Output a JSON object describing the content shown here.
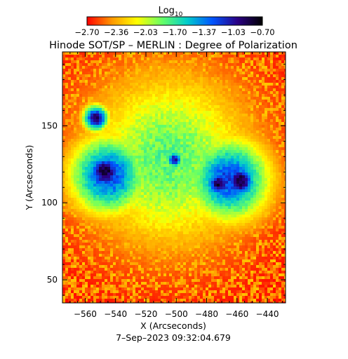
{
  "chart_data": {
    "type": "heatmap",
    "title": "Hinode SOT/SP – MERLIN : Degree of Polarization",
    "xlabel": "X (Arcseconds)",
    "ylabel": "Y (Arcseconds)",
    "xlim": [
      -575,
      -428
    ],
    "ylim": [
      35,
      198
    ],
    "xticks": [
      -560,
      -540,
      -520,
      -500,
      -480,
      -460,
      -440
    ],
    "yticks": [
      50,
      100,
      150
    ],
    "colorbar": {
      "title_base": "Log",
      "title_sub": "10",
      "range": [
        -2.7,
        -0.7
      ],
      "tick_labels": [
        "−2.70",
        "−2.36",
        "−2.03",
        "−1.70",
        "−1.37",
        "−1.03",
        "−0.70"
      ],
      "colors": [
        "#ff0000",
        "#ff9900",
        "#ffff00",
        "#66ff66",
        "#00cccc",
        "#0055ff",
        "#2a0085",
        "#000000"
      ]
    },
    "date_label": "7–Sep–2023 09:32:04.679",
    "features": [
      {
        "name": "left-sunspot-umbra",
        "x": -547,
        "y": 120,
        "radius": 9,
        "value": -0.8
      },
      {
        "name": "left-sunspot-penumbra",
        "x": -545,
        "y": 118,
        "radius": 18,
        "value": -1.2
      },
      {
        "name": "small-pore-north",
        "x": -553,
        "y": 155,
        "radius": 6,
        "value": -0.9
      },
      {
        "name": "right-sunspot-umbra-a",
        "x": -458,
        "y": 114,
        "radius": 8,
        "value": -0.8
      },
      {
        "name": "right-sunspot-umbra-b",
        "x": -472,
        "y": 112,
        "radius": 6,
        "value": -0.8
      },
      {
        "name": "right-sunspot-penumbra",
        "x": -465,
        "y": 115,
        "radius": 19,
        "value": -1.2
      },
      {
        "name": "pore-center",
        "x": -501,
        "y": 128,
        "radius": 4,
        "value": -1.0
      },
      {
        "name": "plage-band",
        "x": -505,
        "y": 128,
        "radius": 40,
        "value": -1.8
      }
    ]
  }
}
